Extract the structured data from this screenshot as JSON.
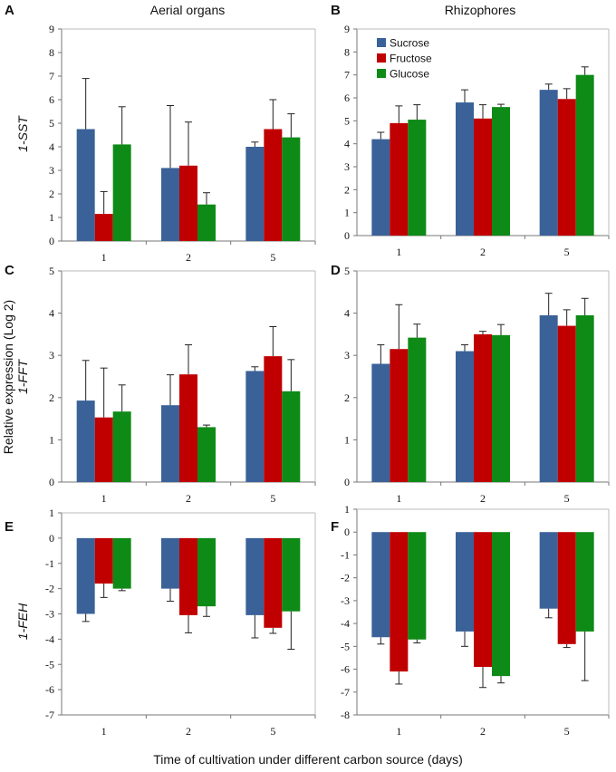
{
  "figure": {
    "column_titles": [
      "Aerial organs",
      "Rhizophores"
    ],
    "row_genes": [
      "1-SST",
      "1-FFT",
      "1-FEH"
    ],
    "ylabel": "Relative  expression (Log 2)",
    "xlabel": "Time of cultivation under different carbon source (days)"
  },
  "colors": {
    "Sucrose": "#3a6299",
    "Fructose": "#c00000",
    "Glucose": "#0e8a16"
  },
  "chart_data": [
    {
      "panel": "A",
      "type": "bar",
      "gene": "1-SST",
      "tissue": "Aerial organs",
      "categories": [
        "1",
        "2",
        "5"
      ],
      "ylim": [
        0,
        9
      ],
      "yticks": [
        0,
        1,
        2,
        3,
        4,
        5,
        6,
        7,
        8,
        9
      ],
      "legend": null,
      "series": [
        {
          "name": "Sucrose",
          "values": [
            4.75,
            3.1,
            4.0
          ],
          "errors": [
            2.15,
            2.65,
            0.2
          ]
        },
        {
          "name": "Fructose",
          "values": [
            1.15,
            3.2,
            4.75
          ],
          "errors": [
            0.95,
            1.85,
            1.25
          ]
        },
        {
          "name": "Glucose",
          "values": [
            4.1,
            1.55,
            4.4
          ],
          "errors": [
            1.6,
            0.5,
            1.0
          ]
        }
      ]
    },
    {
      "panel": "B",
      "type": "bar",
      "gene": "1-SST",
      "tissue": "Rhizophores",
      "categories": [
        "1",
        "2",
        "5"
      ],
      "ylim": [
        0,
        9
      ],
      "yticks": [
        0,
        1,
        2,
        3,
        4,
        5,
        6,
        7,
        8,
        9
      ],
      "legend": [
        "Sucrose",
        "Fructose",
        "Glucose"
      ],
      "series": [
        {
          "name": "Sucrose",
          "values": [
            4.2,
            5.8,
            6.35
          ],
          "errors": [
            0.3,
            0.55,
            0.25
          ]
        },
        {
          "name": "Fructose",
          "values": [
            4.9,
            5.1,
            5.95
          ],
          "errors": [
            0.75,
            0.6,
            0.45
          ]
        },
        {
          "name": "Glucose",
          "values": [
            5.05,
            5.6,
            7.0
          ],
          "errors": [
            0.65,
            0.12,
            0.35
          ]
        }
      ]
    },
    {
      "panel": "C",
      "type": "bar",
      "gene": "1-FFT",
      "tissue": "Aerial organs",
      "categories": [
        "1",
        "2",
        "5"
      ],
      "ylim": [
        0,
        5
      ],
      "yticks": [
        0,
        1,
        2,
        3,
        4,
        5
      ],
      "legend": null,
      "series": [
        {
          "name": "Sucrose",
          "values": [
            1.93,
            1.82,
            2.63
          ],
          "errors": [
            0.95,
            0.72,
            0.1
          ]
        },
        {
          "name": "Fructose",
          "values": [
            1.53,
            2.55,
            2.98
          ],
          "errors": [
            1.17,
            0.7,
            0.7
          ]
        },
        {
          "name": "Glucose",
          "values": [
            1.67,
            1.3,
            2.15
          ],
          "errors": [
            0.63,
            0.05,
            0.75
          ]
        }
      ]
    },
    {
      "panel": "D",
      "type": "bar",
      "gene": "1-FFT",
      "tissue": "Rhizophores",
      "categories": [
        "1",
        "2",
        "5"
      ],
      "ylim": [
        0,
        5
      ],
      "yticks": [
        0,
        1,
        2,
        3,
        4,
        5
      ],
      "legend": null,
      "series": [
        {
          "name": "Sucrose",
          "values": [
            2.8,
            3.1,
            3.95
          ],
          "errors": [
            0.45,
            0.15,
            0.52
          ]
        },
        {
          "name": "Fructose",
          "values": [
            3.15,
            3.5,
            3.7
          ],
          "errors": [
            1.05,
            0.07,
            0.38
          ]
        },
        {
          "name": "Glucose",
          "values": [
            3.42,
            3.48,
            3.95
          ],
          "errors": [
            0.32,
            0.25,
            0.4
          ]
        }
      ]
    },
    {
      "panel": "E",
      "type": "bar",
      "gene": "1-FEH",
      "tissue": "Aerial organs",
      "categories": [
        "1",
        "2",
        "5"
      ],
      "ylim": [
        -7,
        1
      ],
      "yticks": [
        1,
        0,
        -1,
        -2,
        -3,
        -4,
        -5,
        -6,
        -7
      ],
      "legend": null,
      "series": [
        {
          "name": "Sucrose",
          "values": [
            -3.0,
            -2.0,
            -3.05
          ],
          "errors": [
            0.3,
            0.5,
            0.9
          ]
        },
        {
          "name": "Fructose",
          "values": [
            -1.8,
            -3.05,
            -3.55
          ],
          "errors": [
            0.55,
            0.7,
            0.22
          ]
        },
        {
          "name": "Glucose",
          "values": [
            -2.0,
            -2.7,
            -2.9
          ],
          "errors": [
            0.08,
            0.4,
            1.5
          ]
        }
      ]
    },
    {
      "panel": "F",
      "type": "bar",
      "gene": "1-FEH",
      "tissue": "Rhizophores",
      "categories": [
        "1",
        "2",
        "5"
      ],
      "ylim": [
        -8,
        1
      ],
      "yticks": [
        1,
        0,
        -1,
        -2,
        -3,
        -4,
        -5,
        -6,
        -7,
        -8
      ],
      "legend": null,
      "series": [
        {
          "name": "Sucrose",
          "values": [
            -4.6,
            -4.35,
            -3.35
          ],
          "errors": [
            0.3,
            0.65,
            0.4
          ]
        },
        {
          "name": "Fructose",
          "values": [
            -6.1,
            -5.9,
            -4.9
          ],
          "errors": [
            0.55,
            0.9,
            0.15
          ]
        },
        {
          "name": "Glucose",
          "values": [
            -4.7,
            -6.3,
            -4.35
          ],
          "errors": [
            0.15,
            0.3,
            2.15
          ]
        }
      ]
    }
  ]
}
